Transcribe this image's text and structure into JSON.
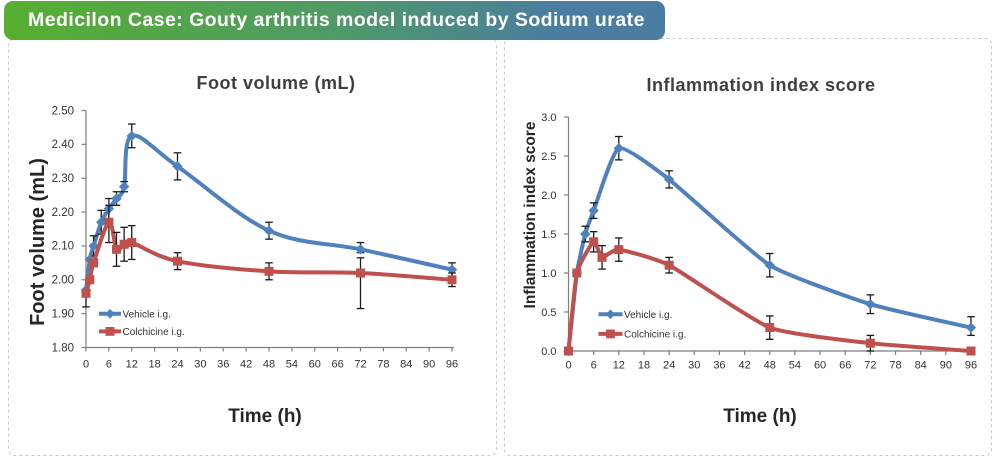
{
  "banner": {
    "text": "Medicilon Case: Gouty arthritis model induced by Sodium urate",
    "text_color": "#ffffff",
    "gradient_from": "#57af30",
    "gradient_mid": "#4f9a66",
    "gradient_to": "#4a7da1"
  },
  "panel": {
    "border_color": "#c9c9c9",
    "background": "#ffffff"
  },
  "chart_data": [
    {
      "type": "line",
      "title": "Foot volume (mL)",
      "xlabel": "Time (h)",
      "ylabel": "Foot volume (mL)",
      "xlim": [
        0,
        96
      ],
      "ylim": [
        1.8,
        2.5
      ],
      "xticks": [
        0,
        6,
        12,
        18,
        24,
        30,
        36,
        42,
        48,
        54,
        60,
        66,
        72,
        78,
        84,
        90,
        96
      ],
      "ytick_labels": [
        "1.80",
        "1.90",
        "2.00",
        "2.10",
        "2.20",
        "2.30",
        "2.40",
        "2.50"
      ],
      "grid": false,
      "legend_position": "inside-lower-left",
      "axis_color": "#7f7f7f",
      "error_bar_color": "#1a1a1a",
      "series": [
        {
          "name": "Vehicle i.g.",
          "color": "#4F81BD",
          "marker": "diamond",
          "x": [
            0,
            1,
            2,
            4,
            6,
            8,
            10,
            12,
            24,
            48,
            72,
            96
          ],
          "y": [
            1.97,
            2.06,
            2.1,
            2.17,
            2.21,
            2.24,
            2.275,
            2.425,
            2.335,
            2.145,
            2.09,
            2.03
          ],
          "err_up": [
            0,
            0,
            0.03,
            0.035,
            0.03,
            0.02,
            0.015,
            0.035,
            0.04,
            0.025,
            0.02,
            0.02
          ],
          "err_dn": [
            0,
            0,
            0.03,
            0.035,
            0.03,
            0.02,
            0.015,
            0.035,
            0.04,
            0.025,
            0.01,
            0.02
          ]
        },
        {
          "name": "Colchicine i.g.",
          "color": "#C0504D",
          "marker": "square",
          "x": [
            0,
            1,
            2,
            6,
            8,
            10,
            12,
            24,
            48,
            72,
            96
          ],
          "y": [
            1.96,
            2.0,
            2.05,
            2.17,
            2.09,
            2.105,
            2.11,
            2.055,
            2.025,
            2.02,
            2.0
          ],
          "err_up": [
            0,
            0,
            0,
            0.05,
            0.05,
            0.05,
            0.05,
            0.025,
            0.025,
            0.045,
            0.02
          ],
          "err_dn": [
            0.04,
            0,
            0,
            0.06,
            0.05,
            0.05,
            0.05,
            0.025,
            0.025,
            0.105,
            0.02
          ]
        }
      ]
    },
    {
      "type": "line",
      "title": "Inflammation index score",
      "xlabel": "Time (h)",
      "ylabel": "Inflammation index score",
      "xlim": [
        0,
        96
      ],
      "ylim": [
        0.0,
        3.0
      ],
      "xticks": [
        0,
        6,
        12,
        18,
        24,
        30,
        36,
        42,
        48,
        54,
        60,
        66,
        72,
        78,
        84,
        90,
        96
      ],
      "ytick_labels": [
        "0.0",
        "0.5",
        "1.0",
        "1.5",
        "2.0",
        "2.5",
        "3.0"
      ],
      "grid": false,
      "legend_position": "inside-left",
      "axis_color": "#7f7f7f",
      "error_bar_color": "#1a1a1a",
      "series": [
        {
          "name": "Vehicle i.g.",
          "color": "#4F81BD",
          "marker": "diamond",
          "x": [
            0,
            2,
            4,
            6,
            12,
            24,
            48,
            72,
            96
          ],
          "y": [
            0.0,
            1.0,
            1.5,
            1.8,
            2.6,
            2.2,
            1.1,
            0.6,
            0.3
          ],
          "err_up": [
            0,
            0,
            0.1,
            0.1,
            0.15,
            0.11,
            0.15,
            0.12,
            0.14
          ],
          "err_dn": [
            0,
            0,
            0.1,
            0.1,
            0.15,
            0.11,
            0.15,
            0.12,
            0.1
          ]
        },
        {
          "name": "Colchicine i.g.",
          "color": "#C0504D",
          "marker": "square",
          "x": [
            0,
            2,
            6,
            8,
            12,
            24,
            48,
            72,
            96
          ],
          "y": [
            0.0,
            1.0,
            1.4,
            1.2,
            1.3,
            1.1,
            0.3,
            0.1,
            0.0
          ],
          "err_up": [
            0,
            0,
            0.13,
            0.15,
            0.15,
            0.1,
            0.15,
            0.1,
            0
          ],
          "err_dn": [
            0,
            0,
            0.13,
            0.15,
            0.15,
            0.1,
            0.15,
            0.1,
            0
          ]
        }
      ]
    }
  ]
}
